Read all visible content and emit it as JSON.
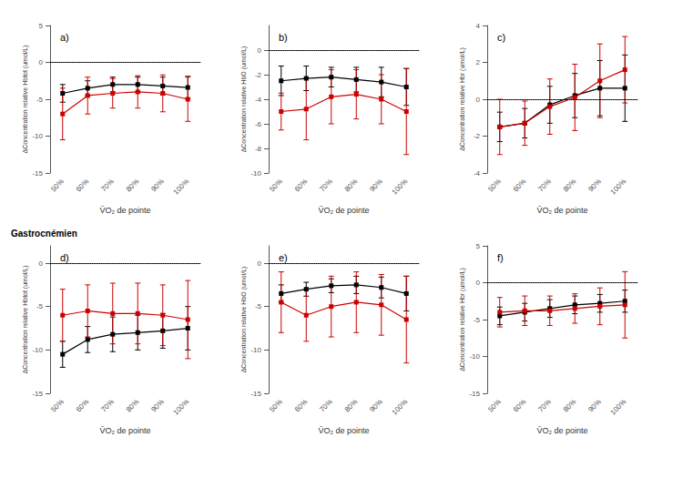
{
  "chart_data": [
    {
      "type": "line",
      "title": "a)",
      "xlabel": "ṼO₂ de pointe",
      "ylabel": "ΔConcentration relative Hbtot (umol/L)",
      "categories": [
        "50%",
        "60%",
        "70%",
        "80%",
        "90%",
        "100%"
      ],
      "series": [
        {
          "color": "#000000",
          "marker": "square",
          "line_style": "solid",
          "values": [
            -4.2,
            -3.5,
            -3.0,
            -3.0,
            -3.2,
            -3.4
          ],
          "errors": [
            1.2,
            1.0,
            1.0,
            1.0,
            1.2,
            1.5
          ]
        },
        {
          "color": "#cc0000",
          "marker": "square",
          "line_style": "solid",
          "values": [
            -7.0,
            -4.5,
            -4.2,
            -4.0,
            -4.2,
            -5.0
          ],
          "errors": [
            3.5,
            2.5,
            2.0,
            2.2,
            2.5,
            3.0
          ]
        }
      ],
      "ylim": [
        -15,
        5
      ],
      "yticks": [
        -15,
        -10,
        -5,
        0,
        5
      ],
      "grid": false,
      "reference_lines": [
        {
          "y": 0,
          "line_style": "dotted",
          "color": "#000000"
        }
      ]
    },
    {
      "type": "line",
      "title": "b)",
      "xlabel": "ṼO₂ de pointe",
      "ylabel": "ΔConcentration relative HbO (umol/L)",
      "categories": [
        "50%",
        "60%",
        "70%",
        "80%",
        "90%",
        "100%"
      ],
      "series": [
        {
          "color": "#000000",
          "marker": "square",
          "line_style": "solid",
          "values": [
            -2.5,
            -2.3,
            -2.2,
            -2.4,
            -2.6,
            -3.0
          ],
          "errors": [
            1.2,
            1.0,
            0.8,
            1.0,
            1.2,
            1.5
          ]
        },
        {
          "color": "#cc0000",
          "marker": "square",
          "line_style": "solid",
          "values": [
            -5.0,
            -4.8,
            -3.8,
            -3.6,
            -4.0,
            -5.0
          ],
          "errors": [
            1.5,
            2.5,
            2.2,
            2.0,
            2.0,
            3.5
          ]
        }
      ],
      "ylim": [
        -10,
        2
      ],
      "yticks": [
        -10,
        -8,
        -6,
        -4,
        -2,
        0
      ],
      "grid": false,
      "reference_lines": [
        {
          "y": 0,
          "line_style": "dotted",
          "color": "#000000"
        }
      ]
    },
    {
      "type": "line",
      "title": "c)",
      "xlabel": "ṼO₂ de pointe",
      "ylabel": "ΔConcentration relative Hbr (umol/L)",
      "categories": [
        "50%",
        "60%",
        "70%",
        "80%",
        "90%",
        "100%"
      ],
      "series": [
        {
          "color": "#000000",
          "marker": "square",
          "line_style": "solid",
          "values": [
            -1.5,
            -1.3,
            -0.3,
            0.2,
            0.6,
            0.6
          ],
          "errors": [
            0.8,
            0.8,
            1.0,
            1.2,
            1.5,
            1.8
          ]
        },
        {
          "color": "#cc0000",
          "marker": "square",
          "line_style": "solid",
          "values": [
            -1.5,
            -1.3,
            -0.4,
            0.1,
            1.0,
            1.6
          ],
          "errors": [
            1.5,
            1.2,
            1.5,
            1.8,
            2.0,
            1.8
          ]
        }
      ],
      "ylim": [
        -4,
        4
      ],
      "yticks": [
        -4,
        -2,
        0,
        2,
        4
      ],
      "grid": false,
      "reference_lines": [
        {
          "y": 0,
          "line_style": "dotted",
          "color": "#000000"
        }
      ]
    },
    {
      "type": "line",
      "title": "d)",
      "xlabel": "ṼO₂ de pointe",
      "ylabel": "ΔConcentration relative Hbtot (umol/L)",
      "annotations": [
        {
          "text": "Gastrocnémien"
        }
      ],
      "categories": [
        "50%",
        "60%",
        "70%",
        "80%",
        "90%",
        "100%"
      ],
      "series": [
        {
          "color": "#000000",
          "marker": "square",
          "line_style": "solid",
          "values": [
            -10.5,
            -8.8,
            -8.2,
            -8.0,
            -7.8,
            -7.5
          ],
          "errors": [
            1.5,
            1.5,
            2.0,
            2.0,
            2.0,
            2.5
          ]
        },
        {
          "color": "#cc0000",
          "marker": "square",
          "line_style": "solid",
          "values": [
            -6.0,
            -5.5,
            -5.8,
            -5.8,
            -6.0,
            -6.5
          ],
          "errors": [
            3.0,
            3.0,
            3.5,
            3.5,
            3.5,
            4.5
          ]
        }
      ],
      "ylim": [
        -15,
        2
      ],
      "yticks": [
        -15,
        -10,
        -5,
        0
      ],
      "grid": false,
      "reference_lines": [
        {
          "y": 0,
          "line_style": "dotted",
          "color": "#000000"
        }
      ]
    },
    {
      "type": "line",
      "title": "e)",
      "xlabel": "ṼO₂ de pointe",
      "ylabel": "ΔConcentration relative HbO (umol/L)",
      "categories": [
        "50%",
        "60%",
        "70%",
        "80%",
        "90%",
        "100%"
      ],
      "series": [
        {
          "color": "#000000",
          "marker": "square",
          "line_style": "solid",
          "values": [
            -3.5,
            -3.0,
            -2.6,
            -2.5,
            -2.8,
            -3.5
          ],
          "errors": [
            1.0,
            0.8,
            0.8,
            1.0,
            1.2,
            2.0
          ]
        },
        {
          "color": "#cc0000",
          "marker": "square",
          "line_style": "solid",
          "values": [
            -4.5,
            -6.0,
            -5.0,
            -4.5,
            -4.8,
            -6.5
          ],
          "errors": [
            3.5,
            3.0,
            3.5,
            3.5,
            3.5,
            5.0
          ]
        }
      ],
      "ylim": [
        -15,
        2
      ],
      "yticks": [
        -15,
        -10,
        -5,
        0
      ],
      "grid": false,
      "reference_lines": [
        {
          "y": 0,
          "line_style": "dotted",
          "color": "#000000"
        }
      ]
    },
    {
      "type": "line",
      "title": "f)",
      "xlabel": "ṼO₂ de pointe",
      "ylabel": "ΔConcentration relative Hbr (umol/L)",
      "categories": [
        "50%",
        "60%",
        "70%",
        "80%",
        "90%",
        "100%"
      ],
      "series": [
        {
          "color": "#000000",
          "marker": "square",
          "line_style": "solid",
          "values": [
            -4.5,
            -4.0,
            -3.5,
            -3.0,
            -2.8,
            -2.5
          ],
          "errors": [
            1.2,
            1.2,
            1.2,
            1.2,
            1.2,
            1.5
          ]
        },
        {
          "color": "#cc0000",
          "marker": "square",
          "line_style": "solid",
          "values": [
            -4.0,
            -3.8,
            -3.8,
            -3.5,
            -3.2,
            -3.0
          ],
          "errors": [
            2.0,
            2.0,
            2.0,
            2.0,
            2.5,
            4.5
          ]
        }
      ],
      "ylim": [
        -15,
        5
      ],
      "yticks": [
        -15,
        -10,
        -5,
        0,
        5
      ],
      "grid": false,
      "reference_lines": [
        {
          "y": 0,
          "line_style": "dotted",
          "color": "#000000"
        }
      ]
    }
  ]
}
